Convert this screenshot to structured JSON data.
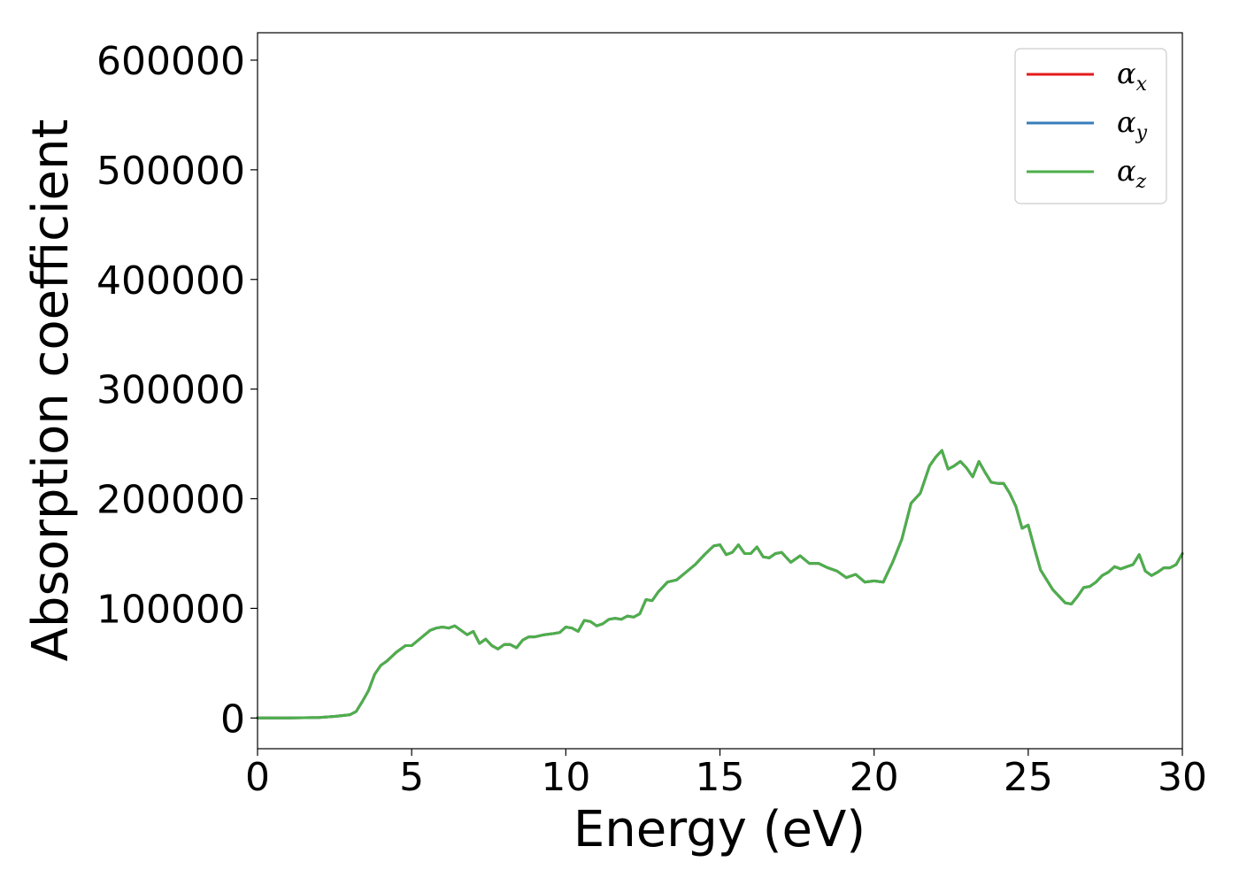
{
  "chart_data": {
    "type": "line",
    "xlabel": "Energy (eV)",
    "ylabel": "Absorption coefficient",
    "xlim": [
      0,
      30
    ],
    "ylim": [
      -28000,
      625000
    ],
    "xticks": [
      0,
      5,
      10,
      15,
      20,
      25,
      30
    ],
    "xtick_labels": [
      "0",
      "5",
      "10",
      "15",
      "20",
      "25",
      "30"
    ],
    "yticks": [
      0,
      100000,
      200000,
      300000,
      400000,
      500000,
      600000
    ],
    "ytick_labels": [
      "0",
      "100000",
      "200000",
      "300000",
      "400000",
      "500000",
      "600000"
    ],
    "grid": false,
    "legend_position": "top-right",
    "x": [
      0.0,
      1.0,
      2.0,
      2.5,
      3.0,
      3.2,
      3.4,
      3.6,
      3.8,
      4.0,
      4.2,
      4.5,
      4.8,
      5.0,
      5.3,
      5.6,
      5.8,
      6.0,
      6.2,
      6.4,
      6.6,
      6.8,
      7.0,
      7.2,
      7.4,
      7.6,
      7.8,
      8.0,
      8.2,
      8.4,
      8.6,
      8.8,
      9.0,
      9.3,
      9.6,
      9.8,
      10.0,
      10.2,
      10.4,
      10.6,
      10.8,
      11.0,
      11.2,
      11.4,
      11.6,
      11.8,
      12.0,
      12.2,
      12.4,
      12.6,
      12.8,
      13.0,
      13.3,
      13.6,
      13.9,
      14.2,
      14.5,
      14.8,
      15.0,
      15.2,
      15.4,
      15.6,
      15.8,
      16.0,
      16.2,
      16.4,
      16.6,
      16.8,
      17.0,
      17.3,
      17.6,
      17.9,
      18.2,
      18.5,
      18.8,
      19.1,
      19.4,
      19.7,
      20.0,
      20.3,
      20.6,
      20.9,
      21.2,
      21.5,
      21.8,
      22.0,
      22.2,
      22.4,
      22.6,
      22.8,
      23.0,
      23.2,
      23.4,
      23.6,
      23.8,
      24.0,
      24.2,
      24.4,
      24.6,
      24.8,
      25.0,
      25.2,
      25.4,
      25.6,
      25.8,
      26.0,
      26.2,
      26.4,
      26.6,
      26.8,
      27.0,
      27.2,
      27.4,
      27.6,
      27.8,
      28.0,
      28.2,
      28.4,
      28.6,
      28.8,
      29.0,
      29.2,
      29.4,
      29.6,
      29.8,
      30.0
    ],
    "series": [
      {
        "name": "αx",
        "color": "#e41a1c",
        "values": [
          0,
          0,
          500,
          1500,
          3000,
          6000,
          15000,
          25000,
          40000,
          48000,
          52000,
          60000,
          66000,
          66000,
          73000,
          80000,
          82000,
          83000,
          82000,
          84000,
          80000,
          76000,
          79000,
          68000,
          72000,
          66000,
          63000,
          67000,
          67000,
          64000,
          71000,
          74000,
          74000,
          76000,
          77000,
          78000,
          83000,
          82000,
          79000,
          89000,
          88000,
          84000,
          86000,
          90000,
          91000,
          90000,
          93000,
          92000,
          95000,
          108000,
          107000,
          115000,
          124000,
          126000,
          133000,
          140000,
          149000,
          157000,
          158000,
          149000,
          151000,
          158000,
          150000,
          150000,
          156000,
          147000,
          146000,
          150000,
          151000,
          142000,
          148000,
          141000,
          141000,
          137000,
          134000,
          128000,
          131000,
          124000,
          125000,
          124000,
          142000,
          163000,
          196000,
          205000,
          230000,
          238000,
          244000,
          227000,
          230000,
          234000,
          228000,
          220000,
          234000,
          224000,
          215000,
          214000,
          214000,
          205000,
          193000,
          173000,
          176000,
          155000,
          135000,
          126000,
          117000,
          111000,
          105000,
          104000,
          111000,
          119000,
          120000,
          124000,
          130000,
          133000,
          138000,
          136000,
          138000,
          140000,
          149000,
          134000,
          130000,
          133000,
          137000,
          137000,
          140000,
          150000
        ]
      },
      {
        "name": "αy",
        "color": "#377eb8",
        "values": [
          0,
          0,
          500,
          1500,
          3000,
          6000,
          15000,
          25000,
          40000,
          48000,
          52000,
          60000,
          66000,
          66000,
          73000,
          80000,
          82000,
          83000,
          82000,
          84000,
          80000,
          76000,
          79000,
          68000,
          72000,
          66000,
          63000,
          67000,
          67000,
          64000,
          71000,
          74000,
          74000,
          76000,
          77000,
          78000,
          83000,
          82000,
          79000,
          89000,
          88000,
          84000,
          86000,
          90000,
          91000,
          90000,
          93000,
          92000,
          95000,
          108000,
          107000,
          115000,
          124000,
          126000,
          133000,
          140000,
          149000,
          157000,
          158000,
          149000,
          151000,
          158000,
          150000,
          150000,
          156000,
          147000,
          146000,
          150000,
          151000,
          142000,
          148000,
          141000,
          141000,
          137000,
          134000,
          128000,
          131000,
          124000,
          125000,
          124000,
          142000,
          163000,
          196000,
          205000,
          230000,
          238000,
          244000,
          227000,
          230000,
          234000,
          228000,
          220000,
          234000,
          224000,
          215000,
          214000,
          214000,
          205000,
          193000,
          173000,
          176000,
          155000,
          135000,
          126000,
          117000,
          111000,
          105000,
          104000,
          111000,
          119000,
          120000,
          124000,
          130000,
          133000,
          138000,
          136000,
          138000,
          140000,
          149000,
          134000,
          130000,
          133000,
          137000,
          137000,
          140000,
          150000
        ]
      },
      {
        "name": "αz",
        "color": "#4daf4a",
        "values": [
          0,
          0,
          500,
          1500,
          3000,
          6000,
          15000,
          25000,
          40000,
          48000,
          52000,
          60000,
          66000,
          66000,
          73000,
          80000,
          82000,
          83000,
          82000,
          84000,
          80000,
          76000,
          79000,
          68000,
          72000,
          66000,
          63000,
          67000,
          67000,
          64000,
          71000,
          74000,
          74000,
          76000,
          77000,
          78000,
          83000,
          82000,
          79000,
          89000,
          88000,
          84000,
          86000,
          90000,
          91000,
          90000,
          93000,
          92000,
          95000,
          108000,
          107000,
          115000,
          124000,
          126000,
          133000,
          140000,
          149000,
          157000,
          158000,
          149000,
          151000,
          158000,
          150000,
          150000,
          156000,
          147000,
          146000,
          150000,
          151000,
          142000,
          148000,
          141000,
          141000,
          137000,
          134000,
          128000,
          131000,
          124000,
          125000,
          124000,
          142000,
          163000,
          196000,
          205000,
          230000,
          238000,
          244000,
          227000,
          230000,
          234000,
          228000,
          220000,
          234000,
          224000,
          215000,
          214000,
          214000,
          205000,
          193000,
          173000,
          176000,
          155000,
          135000,
          126000,
          117000,
          111000,
          105000,
          104000,
          111000,
          119000,
          120000,
          124000,
          130000,
          133000,
          138000,
          136000,
          138000,
          140000,
          149000,
          134000,
          130000,
          133000,
          137000,
          137000,
          140000,
          150000
        ]
      }
    ],
    "legend": [
      {
        "symbol": "α",
        "sub": "x",
        "color": "#e41a1c"
      },
      {
        "symbol": "α",
        "sub": "y",
        "color": "#377eb8"
      },
      {
        "symbol": "α",
        "sub": "z",
        "color": "#4daf4a"
      }
    ]
  }
}
